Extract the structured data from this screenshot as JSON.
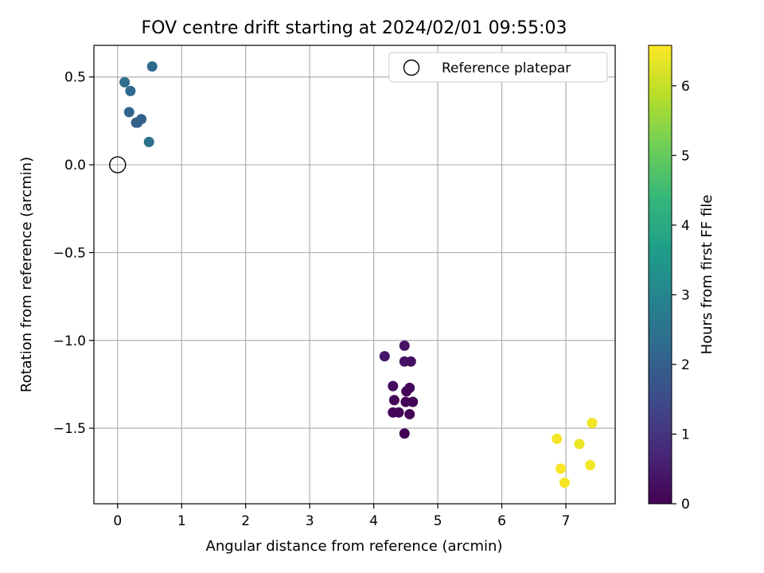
{
  "chart_data": {
    "type": "scatter",
    "title": "FOV centre drift starting at 2024/02/01 09:55:03",
    "xlabel": "Angular distance from reference (arcmin)",
    "ylabel": "Rotation from reference (arcmin)",
    "xlim": [
      -0.37,
      7.77
    ],
    "ylim": [
      -1.93,
      0.68
    ],
    "xticks": [
      "0",
      "1",
      "2",
      "3",
      "4",
      "5",
      "6",
      "7"
    ],
    "xtick_values": [
      0,
      1,
      2,
      3,
      4,
      5,
      6,
      7
    ],
    "yticks": [
      "0.5",
      "0.0",
      "−0.5",
      "−1.0",
      "−1.5"
    ],
    "ytick_values": [
      0.5,
      0.0,
      -0.5,
      -1.0,
      -1.5
    ],
    "grid": true,
    "legend": {
      "position": "top-right",
      "entries": [
        "Reference platepar"
      ]
    },
    "reference_point": {
      "x": 0.0,
      "y": 0.0,
      "label": "Reference platepar"
    },
    "colorbar": {
      "label": "Hours from first FF file",
      "range": [
        0,
        6.58
      ],
      "ticks": [
        "0",
        "1",
        "2",
        "3",
        "4",
        "5",
        "6"
      ],
      "tick_values": [
        0,
        1,
        2,
        3,
        4,
        5,
        6
      ],
      "colormap": [
        "#440154",
        "#482878",
        "#3e4a89",
        "#31688e",
        "#26828e",
        "#1f9e89",
        "#35b779",
        "#6ece58",
        "#b5de2b",
        "#fde725"
      ]
    },
    "points": [
      {
        "x": 0.54,
        "y": 0.56,
        "t": 2.25
      },
      {
        "x": 0.11,
        "y": 0.47,
        "t": 2.35
      },
      {
        "x": 0.2,
        "y": 0.42,
        "t": 2.2
      },
      {
        "x": 0.18,
        "y": 0.3,
        "t": 2.15
      },
      {
        "x": 0.37,
        "y": 0.26,
        "t": 2.0
      },
      {
        "x": 0.29,
        "y": 0.24,
        "t": 1.95
      },
      {
        "x": 0.31,
        "y": 0.24,
        "t": 2.05
      },
      {
        "x": 0.49,
        "y": 0.13,
        "t": 2.45
      },
      {
        "x": 4.17,
        "y": -1.09,
        "t": 0.4
      },
      {
        "x": 4.48,
        "y": -1.03,
        "t": 0.35
      },
      {
        "x": 4.48,
        "y": -1.12,
        "t": 0.3
      },
      {
        "x": 4.58,
        "y": -1.12,
        "t": 0.25
      },
      {
        "x": 4.3,
        "y": -1.26,
        "t": 0.2
      },
      {
        "x": 4.56,
        "y": -1.27,
        "t": 0.15
      },
      {
        "x": 4.51,
        "y": -1.29,
        "t": 0.1
      },
      {
        "x": 4.32,
        "y": -1.34,
        "t": 0.12
      },
      {
        "x": 4.5,
        "y": -1.35,
        "t": 0.08
      },
      {
        "x": 4.61,
        "y": -1.35,
        "t": 0.05
      },
      {
        "x": 4.3,
        "y": -1.41,
        "t": 0.06
      },
      {
        "x": 4.39,
        "y": -1.41,
        "t": 0.04
      },
      {
        "x": 4.56,
        "y": -1.42,
        "t": 0.03
      },
      {
        "x": 4.48,
        "y": -1.53,
        "t": 0.02
      },
      {
        "x": 7.41,
        "y": -1.47,
        "t": 6.45
      },
      {
        "x": 6.86,
        "y": -1.56,
        "t": 6.5
      },
      {
        "x": 7.21,
        "y": -1.59,
        "t": 6.4
      },
      {
        "x": 6.92,
        "y": -1.73,
        "t": 6.55
      },
      {
        "x": 7.38,
        "y": -1.71,
        "t": 6.48
      },
      {
        "x": 6.98,
        "y": -1.81,
        "t": 6.52
      }
    ]
  }
}
